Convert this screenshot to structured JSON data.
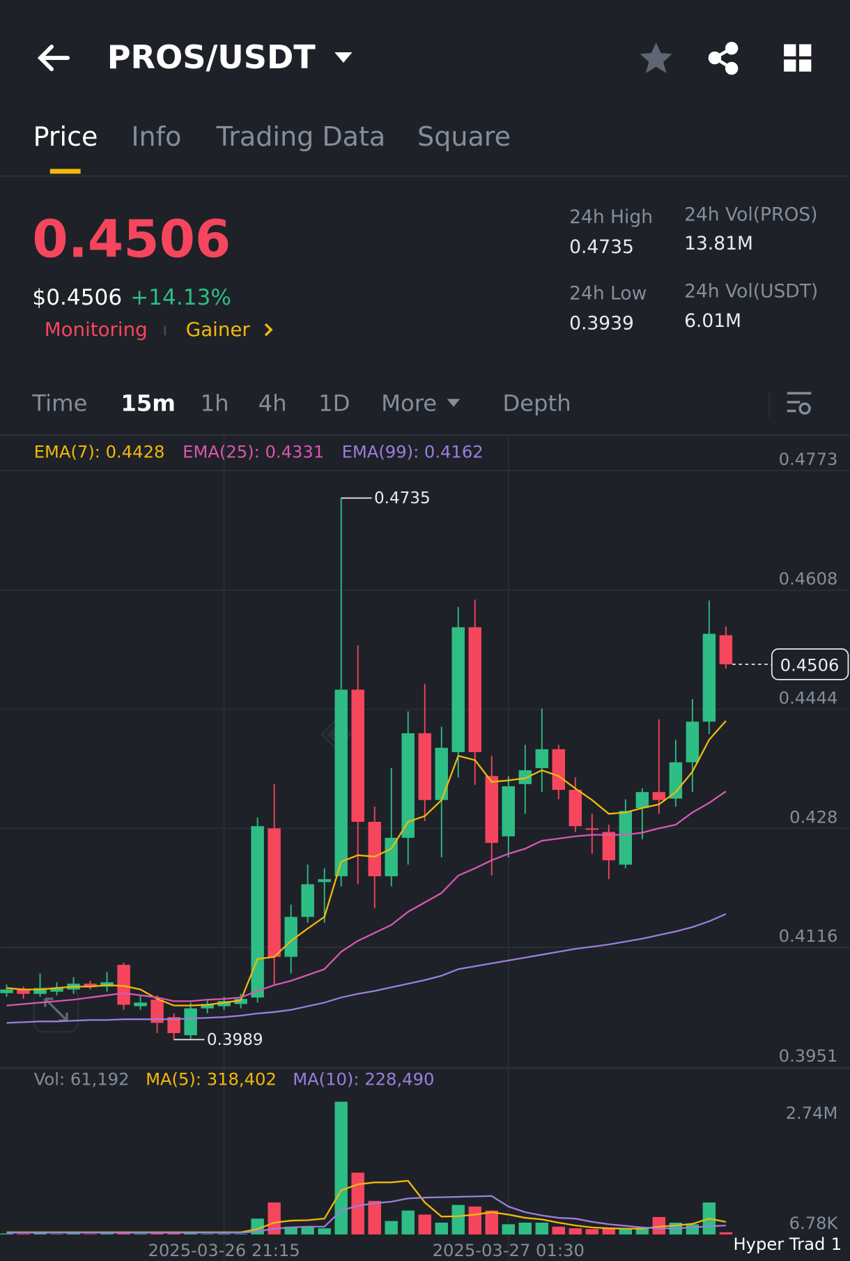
{
  "header": {
    "pair": "PROS/USDT"
  },
  "tabs": [
    "Price",
    "Info",
    "Trading Data",
    "Square"
  ],
  "ticker": {
    "price": "0.4506",
    "usd_price": "$0.4506",
    "change": "+14.13%",
    "tags": [
      "Monitoring",
      "Gainer"
    ],
    "stats": [
      {
        "label": "24h High",
        "value": "0.4735"
      },
      {
        "label": "24h Vol(PROS)",
        "value": "13.81M"
      },
      {
        "label": "24h Low",
        "value": "0.3939"
      },
      {
        "label": "24h Vol(USDT)",
        "value": "6.01M"
      }
    ]
  },
  "intervals": [
    "Time",
    "15m",
    "1h",
    "4h",
    "1D",
    "More",
    "Depth"
  ],
  "chart": {
    "type": "candlestick",
    "up_color": "#2ebd85",
    "down_color": "#f6465d",
    "categories": [
      null,
      null,
      null,
      null,
      null,
      null,
      null,
      null,
      null,
      null,
      null,
      null,
      null,
      "2025-03-26 21:15",
      null,
      null,
      null,
      null,
      null,
      null,
      null,
      null,
      null,
      null,
      null,
      null,
      null,
      null,
      null,
      null,
      "2025-03-27 01:30",
      null,
      null,
      null,
      null,
      null,
      null,
      null,
      null,
      null,
      null,
      null,
      null,
      null
    ],
    "open": [
      0.4053,
      0.4058,
      0.4052,
      0.4055,
      0.4058,
      0.4066,
      0.4062,
      0.4092,
      0.4035,
      0.4044,
      0.402,
      0.3995,
      0.4032,
      0.4035,
      0.4038,
      0.4047,
      0.428,
      0.4103,
      0.4158,
      0.4206,
      0.4214,
      0.4471,
      0.4289,
      0.4214,
      0.4267,
      0.4411,
      0.4319,
      0.4385,
      0.4557,
      0.4352,
      0.4269,
      0.4341,
      0.4363,
      0.4389,
      0.4333,
      0.428,
      0.4275,
      0.423,
      0.4308,
      0.433,
      0.4321,
      0.4371,
      0.4427,
      0.4546
    ],
    "high": [
      0.4065,
      0.4062,
      0.408,
      0.4068,
      0.4075,
      0.407,
      0.4082,
      0.4095,
      0.405,
      0.405,
      0.4025,
      0.404,
      0.4045,
      0.4048,
      0.4052,
      0.4295,
      0.4341,
      0.4175,
      0.423,
      0.4225,
      0.4735,
      0.4532,
      0.431,
      0.4363,
      0.4441,
      0.4479,
      0.442,
      0.4585,
      0.4595,
      0.438,
      0.4352,
      0.4395,
      0.4445,
      0.4395,
      0.435,
      0.43,
      0.4285,
      0.432,
      0.4335,
      0.443,
      0.4402,
      0.4458,
      0.4594,
      0.4558
    ],
    "low": [
      0.4048,
      0.4045,
      0.4048,
      0.405,
      0.4052,
      0.4058,
      0.4055,
      0.403,
      0.403,
      0.3998,
      0.3989,
      0.399,
      0.4025,
      0.403,
      0.4032,
      0.404,
      0.4064,
      0.408,
      0.415,
      0.415,
      0.42,
      0.4203,
      0.417,
      0.42,
      0.423,
      0.429,
      0.424,
      0.435,
      0.434,
      0.4215,
      0.424,
      0.43,
      0.433,
      0.432,
      0.4275,
      0.4245,
      0.421,
      0.4225,
      0.4265,
      0.43,
      0.431,
      0.433,
      0.441,
      0.45
    ],
    "close": [
      0.4058,
      0.4052,
      0.406,
      0.406,
      0.4066,
      0.4062,
      0.4068,
      0.4037,
      0.404,
      0.4012,
      0.3998,
      0.4032,
      0.4038,
      0.4042,
      0.4045,
      0.4283,
      0.4103,
      0.4158,
      0.4203,
      0.421,
      0.4471,
      0.4289,
      0.4214,
      0.4267,
      0.4411,
      0.4319,
      0.4391,
      0.4557,
      0.4385,
      0.426,
      0.4338,
      0.436,
      0.4389,
      0.4333,
      0.4283,
      0.4278,
      0.4236,
      0.4304,
      0.433,
      0.4319,
      0.4371,
      0.4427,
      0.4548,
      0.4506
    ],
    "ylim": [
      0.3951,
      0.4773
    ],
    "yticks": [
      0.4773,
      0.4608,
      0.4444,
      0.428,
      0.4116,
      0.3951
    ],
    "series": [
      {
        "name": "EMA(7): 0.4428",
        "color": "#f0b90b",
        "values": [
          0.406,
          0.4058,
          0.4058,
          0.406,
          0.4062,
          0.4062,
          0.4064,
          0.4063,
          0.4058,
          0.4045,
          0.4036,
          0.4036,
          0.4037,
          0.404,
          0.4043,
          0.41,
          0.4103,
          0.4125,
          0.4142,
          0.4158,
          0.4234,
          0.4243,
          0.4241,
          0.4252,
          0.4289,
          0.4297,
          0.4319,
          0.438,
          0.4374,
          0.4344,
          0.4346,
          0.4349,
          0.436,
          0.4352,
          0.4335,
          0.4319,
          0.43,
          0.4302,
          0.4308,
          0.4313,
          0.433,
          0.4358,
          0.4402,
          0.4428
        ]
      },
      {
        "name": "EMA(25): 0.4331",
        "color": "#d957b2",
        "values": [
          0.4036,
          0.4038,
          0.404,
          0.4042,
          0.4044,
          0.4047,
          0.405,
          0.4053,
          0.405,
          0.4047,
          0.4042,
          0.4042,
          0.4044,
          0.4045,
          0.4047,
          0.4056,
          0.4064,
          0.407,
          0.4078,
          0.4086,
          0.411,
          0.4125,
          0.4136,
          0.4147,
          0.4165,
          0.4178,
          0.4191,
          0.4215,
          0.4225,
          0.4236,
          0.4245,
          0.4252,
          0.4263,
          0.4266,
          0.4269,
          0.4271,
          0.4271,
          0.4271,
          0.4274,
          0.428,
          0.4285,
          0.4302,
          0.4315,
          0.4331
        ]
      },
      {
        "name": "EMA(99): 0.4162",
        "color": "#9b7ee0",
        "values": [
          0.4012,
          0.4013,
          0.4014,
          0.4014,
          0.4015,
          0.4016,
          0.4016,
          0.4017,
          0.4017,
          0.4017,
          0.4017,
          0.4018,
          0.4019,
          0.402,
          0.4022,
          0.4025,
          0.4027,
          0.403,
          0.4035,
          0.404,
          0.4047,
          0.4052,
          0.4056,
          0.4061,
          0.4066,
          0.4071,
          0.4077,
          0.4086,
          0.409,
          0.4094,
          0.4098,
          0.4102,
          0.4106,
          0.411,
          0.4114,
          0.4117,
          0.412,
          0.4124,
          0.4128,
          0.4133,
          0.4138,
          0.4144,
          0.4152,
          0.4162
        ]
      }
    ],
    "volume": {
      "label": "Vol: 61,192",
      "values": [
        30000,
        25000,
        40000,
        20000,
        35000,
        20000,
        30000,
        60000,
        25000,
        50000,
        45000,
        40000,
        20000,
        25000,
        20000,
        400000,
        800000,
        200000,
        200000,
        160000,
        3300000,
        1540000,
        840000,
        340000,
        600000,
        500000,
        300000,
        740000,
        700000,
        600000,
        260000,
        300000,
        300000,
        200000,
        160000,
        140000,
        160000,
        140000,
        160000,
        440000,
        300000,
        260000,
        800000,
        61192
      ],
      "ylim": [
        6780,
        2740000
      ],
      "yticks": [
        {
          "value": 2740000,
          "label": "2.74M"
        },
        {
          "value": 6780,
          "label": "6.78K"
        }
      ],
      "series": [
        {
          "name": "MA(5): 318,402",
          "color": "#f0b90b",
          "values": [
            60000,
            60000,
            60000,
            60000,
            60000,
            60000,
            60000,
            60000,
            60000,
            60000,
            60000,
            60000,
            60000,
            60000,
            60000,
            140000,
            300000,
            350000,
            360000,
            400000,
            1100000,
            1250000,
            1300000,
            1300000,
            1340000,
            800000,
            450000,
            460000,
            500000,
            560000,
            500000,
            420000,
            380000,
            300000,
            230000,
            180000,
            160000,
            150000,
            150000,
            200000,
            230000,
            270000,
            400000,
            318402
          ]
        },
        {
          "name": "MA(10): 228,490",
          "color": "#9b7ee0",
          "values": [
            50000,
            50000,
            50000,
            50000,
            50000,
            50000,
            50000,
            50000,
            50000,
            50000,
            50000,
            50000,
            50000,
            50000,
            50000,
            80000,
            150000,
            180000,
            200000,
            200000,
            600000,
            720000,
            780000,
            820000,
            900000,
            920000,
            930000,
            940000,
            950000,
            960000,
            700000,
            560000,
            480000,
            420000,
            400000,
            320000,
            260000,
            220000,
            180000,
            160000,
            160000,
            180000,
            210000,
            228490
          ]
        }
      ]
    }
  },
  "overlay": {
    "text": "Hyper Trad",
    "count": "1"
  }
}
